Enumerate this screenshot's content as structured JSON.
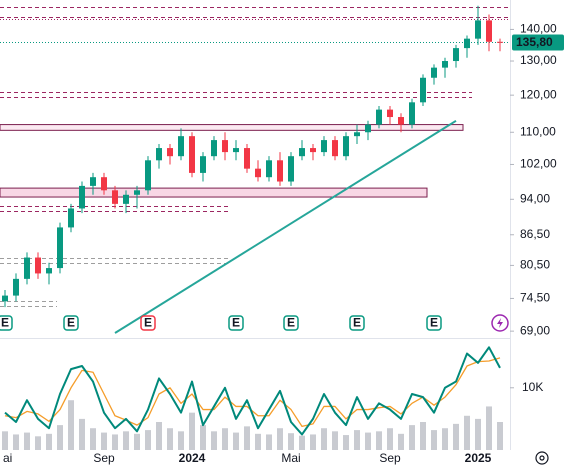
{
  "chart_data": {
    "type": "candlestick",
    "log_scale": true,
    "categories": [
      "ai",
      null,
      null,
      null,
      null,
      null,
      null,
      null,
      null,
      "Sep",
      null,
      null,
      null,
      null,
      null,
      null,
      null,
      "2024",
      null,
      null,
      null,
      null,
      null,
      null,
      null,
      null,
      "Mai",
      null,
      null,
      null,
      null,
      null,
      null,
      null,
      null,
      "Sep",
      null,
      null,
      null,
      null,
      null,
      null,
      null,
      "2025",
      null,
      null
    ],
    "candles": [
      [
        74,
        76,
        73,
        75
      ],
      [
        75,
        79,
        74,
        78
      ],
      [
        78,
        83,
        77,
        82
      ],
      [
        82,
        83,
        78,
        79
      ],
      [
        79,
        81,
        77,
        80
      ],
      [
        80,
        89,
        79,
        88
      ],
      [
        88,
        93,
        87,
        92
      ],
      [
        92,
        98,
        91,
        97
      ],
      [
        97,
        100,
        95,
        99
      ],
      [
        99,
        100,
        95,
        96
      ],
      [
        96,
        97,
        92,
        93
      ],
      [
        93,
        96,
        91,
        95
      ],
      [
        95,
        97,
        92,
        96
      ],
      [
        96,
        104,
        95,
        103
      ],
      [
        103,
        107,
        101,
        106
      ],
      [
        106,
        107,
        102,
        104
      ],
      [
        104,
        111,
        103,
        109
      ],
      [
        109,
        110,
        99,
        100
      ],
      [
        100,
        105,
        98,
        104
      ],
      [
        104,
        109,
        103,
        108
      ],
      [
        108,
        110,
        103,
        105
      ],
      [
        105,
        108,
        103,
        106
      ],
      [
        106,
        107,
        100,
        101
      ],
      [
        101,
        103,
        98,
        99
      ],
      [
        99,
        104,
        98,
        103
      ],
      [
        103,
        105,
        97,
        98
      ],
      [
        98,
        105,
        97,
        104
      ],
      [
        104,
        108,
        103,
        106
      ],
      [
        106,
        107,
        103,
        105
      ],
      [
        105,
        109,
        104,
        108
      ],
      [
        108,
        109,
        103,
        104
      ],
      [
        104,
        110,
        103,
        109
      ],
      [
        109,
        112,
        107,
        110
      ],
      [
        110,
        113,
        108,
        112
      ],
      [
        112,
        117,
        111,
        116
      ],
      [
        116,
        117,
        112,
        114
      ],
      [
        114,
        115,
        110,
        112
      ],
      [
        112,
        119,
        111,
        118
      ],
      [
        118,
        126,
        117,
        125
      ],
      [
        125,
        129,
        123,
        128
      ],
      [
        128,
        131,
        125,
        130
      ],
      [
        130,
        135,
        128,
        134
      ],
      [
        134,
        138,
        131,
        137
      ],
      [
        137,
        148,
        135,
        143
      ],
      [
        143,
        145,
        133,
        136
      ],
      [
        136,
        137,
        133,
        135.8
      ]
    ],
    "up_color": "#089981",
    "down_color": "#f23645",
    "ylim": [
      67.9,
      150
    ],
    "yticks": [
      {
        "value": 140,
        "label": "140,00"
      },
      {
        "value": 130,
        "label": "130,00"
      },
      {
        "value": 120,
        "label": "120,00"
      },
      {
        "value": 110,
        "label": "110,00"
      },
      {
        "value": 102,
        "label": "102,00"
      },
      {
        "value": 94,
        "label": "94,00"
      },
      {
        "value": 86.5,
        "label": "86,50"
      },
      {
        "value": 80.5,
        "label": "80,50"
      },
      {
        "value": 74.5,
        "label": "74,50"
      },
      {
        "value": 69,
        "label": "69,00"
      }
    ],
    "last_price": {
      "value": 135.8,
      "label": "135,80",
      "color": "#089981"
    },
    "levels": [
      {
        "value": 147.5,
        "style": "dashed",
        "color": "#9c2761"
      },
      {
        "value": 144,
        "style": "dashed",
        "color": "#9c2761"
      },
      {
        "value": 143.3,
        "style": "dotted",
        "color": "#9c2761"
      },
      {
        "value": 121,
        "style": "dashed",
        "color": "#9c2761"
      },
      {
        "value": 119.5,
        "style": "dashed",
        "color": "#9c2761"
      },
      {
        "value": 92.5,
        "style": "dashed",
        "color": "#9c2761"
      },
      {
        "value": 91.5,
        "style": "dashed",
        "color": "#9c2761"
      },
      {
        "value": 82,
        "style": "dashed",
        "color": "#9e9e9e"
      },
      {
        "value": 81,
        "style": "dashed",
        "color": "#9e9e9e"
      },
      {
        "value": 74,
        "style": "dashed",
        "color": "#9e9e9e"
      },
      {
        "value": 73.2,
        "style": "dashed",
        "color": "#9e9e9e"
      }
    ],
    "zones": [
      {
        "range": [
          110.5,
          112
        ],
        "fill": "#fbe9f1",
        "stroke": "#7b1f4e"
      },
      {
        "range": [
          94.5,
          96.5
        ],
        "fill": "#f8d7e5",
        "stroke": "#7b1f4e"
      }
    ],
    "trendline": [
      [
        10,
        68.7
      ],
      [
        41,
        113
      ]
    ],
    "trendline_color": "#26a69a",
    "events": [
      {
        "label": "E",
        "at": 0,
        "color": "#089981"
      },
      {
        "label": "E",
        "at": 6,
        "color": "#089981"
      },
      {
        "label": "E",
        "at": 13,
        "color": "#f23645"
      },
      {
        "label": "E",
        "at": 21,
        "color": "#089981"
      },
      {
        "label": "E",
        "at": 26,
        "color": "#089981"
      },
      {
        "label": "E",
        "at": 32,
        "color": "#089981"
      },
      {
        "label": "E",
        "at": 39,
        "color": "#089981"
      }
    ],
    "lower": {
      "ylim": [
        0,
        18000
      ],
      "yticks": [
        {
          "value": 10000,
          "label": "10K"
        }
      ],
      "volume": {
        "color": "#b2b5be",
        "values": [
          3000,
          2500,
          2800,
          2200,
          2600,
          4000,
          8000,
          5000,
          3500,
          2800,
          2500,
          3000,
          2600,
          3200,
          4500,
          3500,
          3000,
          6000,
          4000,
          3000,
          3500,
          2800,
          3800,
          2600,
          2500,
          3500,
          2700,
          2300,
          2500,
          3500,
          3000,
          2400,
          3200,
          2800,
          3000,
          3500,
          2600,
          4000,
          4500,
          3200,
          3500,
          4200,
          5500,
          5000,
          7000,
          4500
        ]
      },
      "series": [
        {
          "color": "#f59d2a",
          "values": [
            5500,
            5200,
            6200,
            5800,
            4600,
            6500,
            10000,
            12800,
            12500,
            9000,
            5500,
            4800,
            4000,
            5200,
            9000,
            10000,
            7500,
            9000,
            6500,
            6500,
            8500,
            7000,
            7000,
            5500,
            5500,
            8000,
            6500,
            3800,
            4200,
            7000,
            7000,
            5000,
            6500,
            6500,
            6800,
            7000,
            5800,
            7500,
            8500,
            7200,
            8500,
            10500,
            13500,
            14200,
            14300,
            14800
          ]
        },
        {
          "color": "#00897b",
          "values": [
            6000,
            4500,
            8000,
            5000,
            3500,
            9000,
            13000,
            13500,
            11000,
            6000,
            3500,
            5000,
            3000,
            6500,
            11500,
            9000,
            6000,
            11000,
            4000,
            7000,
            10000,
            5000,
            8000,
            3500,
            6500,
            9500,
            4500,
            2500,
            5000,
            9000,
            6000,
            4000,
            8500,
            5000,
            7500,
            6500,
            5000,
            9000,
            8500,
            6000,
            10000,
            11000,
            15500,
            14000,
            16500,
            13200
          ]
        }
      ]
    }
  }
}
